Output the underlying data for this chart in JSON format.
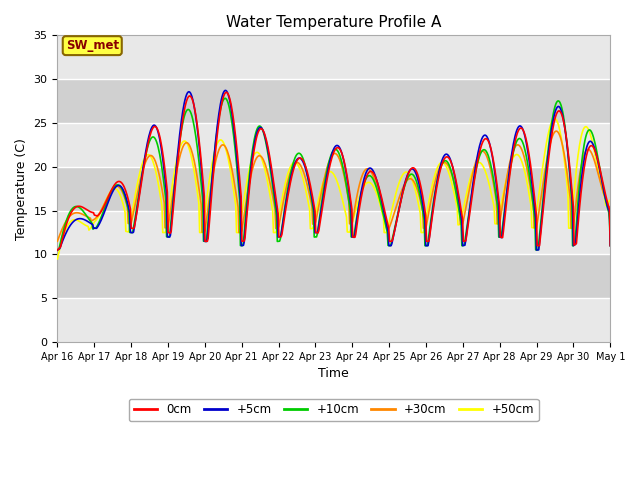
{
  "title": "Water Temperature Profile A",
  "xlabel": "Time",
  "ylabel": "Temperature (C)",
  "ylim": [
    0,
    35
  ],
  "xlim": [
    0,
    15
  ],
  "background_color": "#ffffff",
  "plot_bg_color": "#dcdcdc",
  "band_light": "#e8e8e8",
  "band_dark": "#d0d0d0",
  "grid_color": "#ffffff",
  "series_colors": {
    "0cm": "#ff0000",
    "+5cm": "#0000cc",
    "+10cm": "#00cc00",
    "+30cm": "#ff8800",
    "+50cm": "#ffff00"
  },
  "legend_labels": [
    "0cm",
    "+5cm",
    "+10cm",
    "+30cm",
    "+50cm"
  ],
  "xtick_labels": [
    "Apr 16",
    "Apr 17",
    "Apr 18",
    "Apr 19",
    "Apr 20",
    "Apr 21",
    "Apr 22",
    "Apr 23",
    "Apr 24",
    "Apr 25",
    "Apr 26",
    "Apr 27",
    "Apr 28",
    "Apr 29",
    "Apr 30",
    "May 1"
  ],
  "label_box_text": "SW_met",
  "label_box_color": "#ffff44",
  "label_box_text_color": "#880000",
  "label_box_border_color": "#886600"
}
